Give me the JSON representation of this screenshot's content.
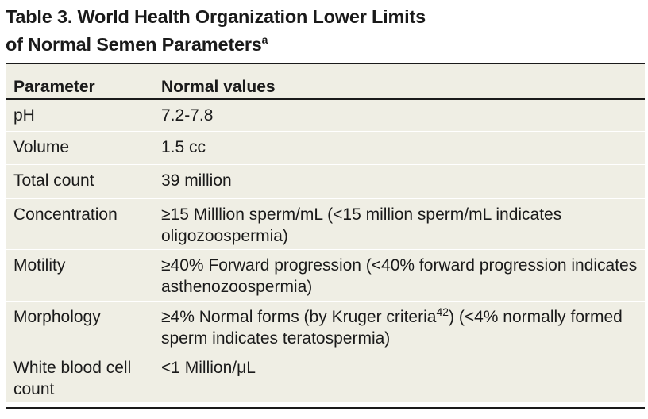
{
  "title": {
    "line1": "Table 3. World Health Organization Lower Limits",
    "line2": "of Normal Semen Parameters",
    "footnote_marker": "a"
  },
  "table": {
    "headers": [
      "Parameter",
      "Normal values"
    ],
    "rows": [
      {
        "parameter": "pH",
        "value": "7.2-7.8"
      },
      {
        "parameter": "Volume",
        "value": "1.5 cc"
      },
      {
        "parameter": "Total count",
        "value": "39 million"
      },
      {
        "parameter": "Concentration",
        "value": "≥15 Milllion sperm/mL (<15 million sperm/mL indicates oligozoospermia)"
      },
      {
        "parameter": "Motility",
        "value": "≥40% Forward progression (<40% forward progression indicates asthenozoospermia)"
      },
      {
        "parameter": "Morphology",
        "value_pre": "≥4% Normal forms (by Kruger criteria",
        "value_ref": "42",
        "value_post": ") (<4% normally formed sperm indicates teratospermia)"
      },
      {
        "parameter": "White blood cell count",
        "value": "<1 Million/μL"
      }
    ]
  }
}
